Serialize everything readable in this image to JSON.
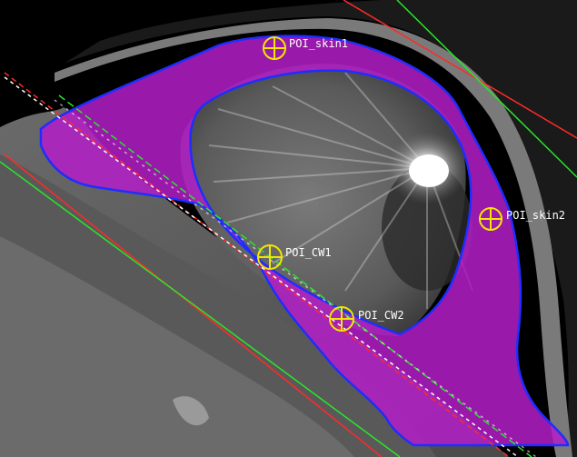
{
  "viewer": {
    "colors": {
      "background": "#000000",
      "contour_fill": "#b41ec8",
      "contour_outline": "#1f2dff",
      "poi_marker": "#f2e600",
      "line_red": "#ff2a2a",
      "line_green": "#29e629",
      "line_white_dashed": "#ffffff",
      "label_text": "#ffffff"
    },
    "pois": [
      {
        "label": "POI_skin1"
      },
      {
        "label": "POI_skin2"
      },
      {
        "label": "POI_CW1"
      },
      {
        "label": "POI_CW2"
      }
    ]
  }
}
